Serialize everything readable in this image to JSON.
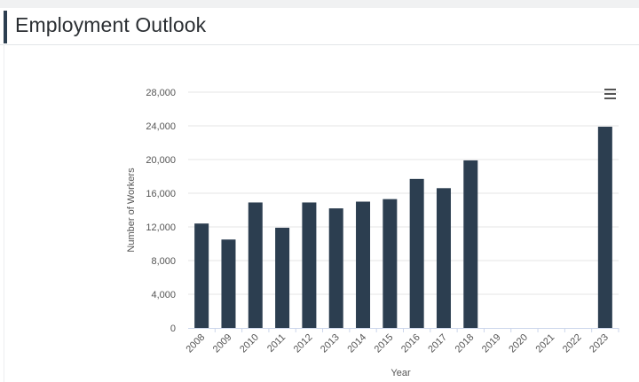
{
  "header": {
    "title": "Employment Outlook"
  },
  "menu": {
    "icon": "hamburger-menu-icon"
  },
  "colors": {
    "bar": "#2c3e50",
    "accent": "#2c3e50",
    "grid": "#e6e6e6"
  },
  "chart_data": {
    "type": "bar",
    "title": "",
    "xlabel": "Year",
    "ylabel": "Number of Workers",
    "categories": [
      "2008",
      "2009",
      "2010",
      "2011",
      "2012",
      "2013",
      "2014",
      "2015",
      "2016",
      "2017",
      "2018",
      "2019",
      "2020",
      "2021",
      "2022",
      "2023"
    ],
    "values": [
      12400,
      10500,
      14900,
      11900,
      14900,
      14200,
      15000,
      15300,
      17700,
      16600,
      19900,
      null,
      null,
      null,
      null,
      23900
    ],
    "ylim": [
      0,
      28000
    ],
    "yticks": [
      "0",
      "4,000",
      "8,000",
      "12,000",
      "16,000",
      "20,000",
      "24,000",
      "28,000"
    ],
    "ytick_values": [
      0,
      4000,
      8000,
      12000,
      16000,
      20000,
      24000,
      28000
    ],
    "grid": true,
    "legend": "none"
  }
}
